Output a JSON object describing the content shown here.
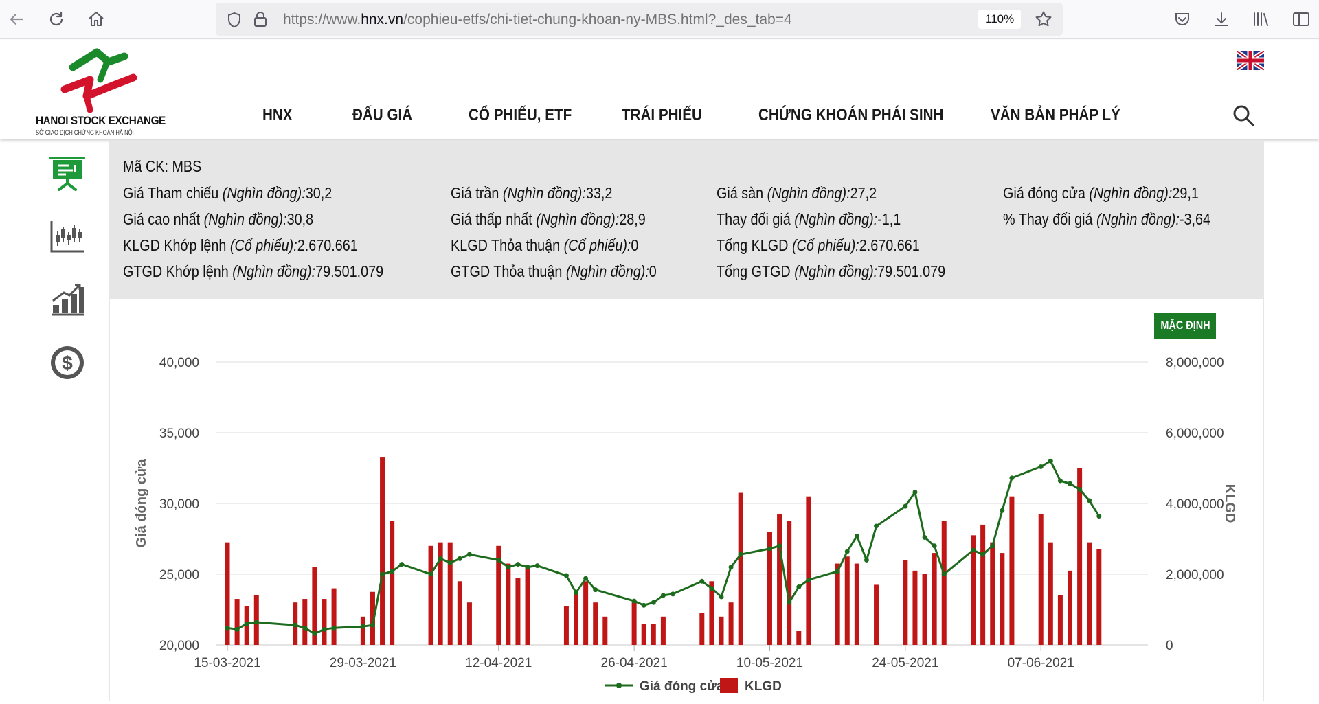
{
  "browser": {
    "url_prefix": "https://www.",
    "url_host": "hnx.vn",
    "url_path": "/cophieu-etfs/chi-tiet-chung-khoan-ny-MBS.html?_des_tab=4",
    "zoom": "110%"
  },
  "header": {
    "logo_title": "HANOI STOCK EXCHANGE",
    "logo_subtitle": "SỞ GIAO DỊCH CHỨNG KHOÁN HÀ NỘI",
    "menu": [
      "HNX",
      "ĐẤU GIÁ",
      "CỔ PHIẾU, ETF",
      "TRÁI PHIẾU",
      "CHỨNG KHOÁN PHÁI SINH",
      "VĂN BẢN PHÁP LÝ"
    ]
  },
  "info": {
    "ticker_label": "Mã CK:",
    "ticker": "MBS",
    "rows": [
      [
        {
          "label": "Giá Tham chiếu",
          "unit": "(Nghìn đồng):",
          "value": "30,2"
        },
        {
          "label": "Giá trần",
          "unit": "(Nghìn đồng):",
          "value": "33,2"
        },
        {
          "label": "Giá sàn",
          "unit": "(Nghìn đồng):",
          "value": "27,2"
        },
        {
          "label": "Giá đóng cửa",
          "unit": "(Nghìn đồng):",
          "value": "29,1"
        }
      ],
      [
        {
          "label": "Giá cao nhất",
          "unit": "(Nghìn đồng):",
          "value": "30,8"
        },
        {
          "label": "Giá thấp nhất",
          "unit": "(Nghìn đồng):",
          "value": "28,9"
        },
        {
          "label": "Thay đổi giá",
          "unit": "(Nghìn đồng):",
          "value": "-1,1"
        },
        {
          "label": "% Thay đổi giá",
          "unit": "(Nghìn đồng):",
          "value": "-3,64"
        }
      ],
      [
        {
          "label": "KLGD Khớp lệnh",
          "unit": "(Cổ phiếu):",
          "value": "2.670.661"
        },
        {
          "label": "KLGD Thỏa thuận",
          "unit": "(Cổ phiếu):",
          "value": "0"
        },
        {
          "label": "Tổng KLGD",
          "unit": "(Cổ phiếu):",
          "value": "2.670.661"
        }
      ],
      [
        {
          "label": "GTGD Khớp lệnh",
          "unit": "(Nghìn đồng):",
          "value": "79.501.079"
        },
        {
          "label": "GTGD Thỏa thuận",
          "unit": "(Nghìn đồng):",
          "value": "0"
        },
        {
          "label": "Tổng GTGD",
          "unit": "(Nghìn đồng):",
          "value": "79.501.079"
        }
      ]
    ]
  },
  "chart": {
    "default_button": "MẶC ĐỊNH"
  },
  "chart_data": {
    "type": "line+bar",
    "x_tick_labels": [
      "15-03-2021",
      "29-03-2021",
      "12-04-2021",
      "26-04-2021",
      "10-05-2021",
      "24-05-2021",
      "07-06-2021"
    ],
    "y_left_label": "Giá đóng cửa",
    "y_right_label": "KLGD",
    "y_left_ticks": [
      "20,000",
      "25,000",
      "30,000",
      "35,000",
      "40,000"
    ],
    "y_right_ticks": [
      "0",
      "2,000,000",
      "4,000,000",
      "6,000,000",
      "8,000,000"
    ],
    "y_left_range": [
      20000,
      40000
    ],
    "y_right_range": [
      0,
      8000000
    ],
    "x_range_days": [
      0,
      92
    ],
    "legend": [
      "Giá đóng cửa",
      "KLGD"
    ],
    "colors": {
      "line": "#1d6b1d",
      "bar": "#c01616"
    },
    "day_offsets": [
      0,
      1,
      2,
      3,
      4,
      7,
      8,
      9,
      10,
      11,
      14,
      15,
      16,
      17,
      18,
      21,
      22,
      23,
      24,
      25,
      28,
      29,
      30,
      31,
      32,
      35,
      36,
      37,
      38,
      39,
      42,
      43,
      44,
      45,
      46,
      49,
      50,
      51,
      52,
      53,
      56,
      57,
      58,
      59,
      60,
      63,
      64,
      65,
      66,
      67,
      70,
      71,
      72,
      73,
      74,
      77,
      78,
      79,
      80,
      81,
      84,
      85,
      86,
      87,
      88,
      89,
      90
    ],
    "close": [
      21200,
      21100,
      21500,
      21600,
      null,
      21400,
      21200,
      20800,
      21100,
      21200,
      21300,
      21400,
      25000,
      25200,
      25700,
      25000,
      26100,
      25800,
      26100,
      26400,
      26000,
      25500,
      25700,
      25500,
      25600,
      24900,
      23700,
      24700,
      23900,
      null,
      23100,
      22800,
      23000,
      23500,
      23600,
      24500,
      24000,
      23400,
      25500,
      26400,
      26800,
      27000,
      23000,
      24100,
      24600,
      25200,
      26600,
      27700,
      26000,
      28400,
      29800,
      30800,
      27600,
      27000,
      25000,
      26700,
      26400,
      27000,
      29500,
      31800,
      32600,
      33000,
      31600,
      31400,
      31000,
      30200,
      29100
    ],
    "volume": [
      2900000,
      1300000,
      1100000,
      1400000,
      null,
      1200000,
      1300000,
      2200000,
      1300000,
      1600000,
      800000,
      1500000,
      5300000,
      3500000,
      null,
      2800000,
      2900000,
      2900000,
      1800000,
      1200000,
      2800000,
      2300000,
      1900000,
      2200000,
      null,
      1100000,
      1500000,
      1800000,
      1200000,
      800000,
      1200000,
      600000,
      600000,
      800000,
      null,
      900000,
      1800000,
      800000,
      1200000,
      4300000,
      3200000,
      3700000,
      3500000,
      400000,
      4200000,
      2300000,
      2500000,
      2300000,
      null,
      1700000,
      2400000,
      2100000,
      2000000,
      2600000,
      3500000,
      3100000,
      3400000,
      2900000,
      2600000,
      4200000,
      3700000,
      2900000,
      1400000,
      2100000,
      5000000,
      2900000,
      2700000
    ]
  }
}
